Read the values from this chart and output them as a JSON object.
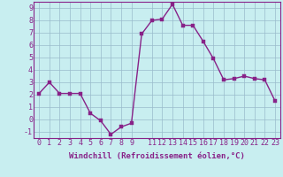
{
  "x": [
    0,
    1,
    2,
    3,
    4,
    5,
    6,
    7,
    8,
    9,
    10,
    11,
    12,
    13,
    14,
    15,
    16,
    17,
    18,
    19,
    20,
    21,
    22,
    23
  ],
  "y": [
    2.1,
    3.0,
    2.1,
    2.1,
    2.1,
    0.5,
    -0.1,
    -1.2,
    -0.6,
    -0.3,
    6.9,
    8.0,
    8.1,
    9.3,
    7.6,
    7.6,
    6.3,
    4.9,
    3.2,
    3.3,
    3.5,
    3.3,
    3.2,
    1.5
  ],
  "line_color": "#882288",
  "marker_color": "#882288",
  "bg_color": "#c8eef0",
  "grid_color": "#99bbcc",
  "xlabel": "Windchill (Refroidissement éolien,°C)",
  "xlim": [
    -0.5,
    23.5
  ],
  "ylim": [
    -1.5,
    9.5
  ],
  "yticks": [
    -1,
    0,
    1,
    2,
    3,
    4,
    5,
    6,
    7,
    8,
    9
  ],
  "xtick_values": [
    0,
    1,
    2,
    3,
    4,
    5,
    6,
    7,
    8,
    9,
    11,
    12,
    13,
    14,
    15,
    16,
    17,
    18,
    19,
    20,
    21,
    22,
    23
  ],
  "xtick_labels": [
    "0",
    "1",
    "2",
    "3",
    "4",
    "5",
    "6",
    "7",
    "8",
    "9",
    "11",
    "12",
    "13",
    "14",
    "15",
    "16",
    "17",
    "18",
    "19",
    "20",
    "21",
    "22",
    "23"
  ],
  "xlabel_fontsize": 6.5,
  "tick_fontsize": 6.0,
  "line_width": 1.0,
  "marker_size": 2.5,
  "spine_color": "#882288"
}
